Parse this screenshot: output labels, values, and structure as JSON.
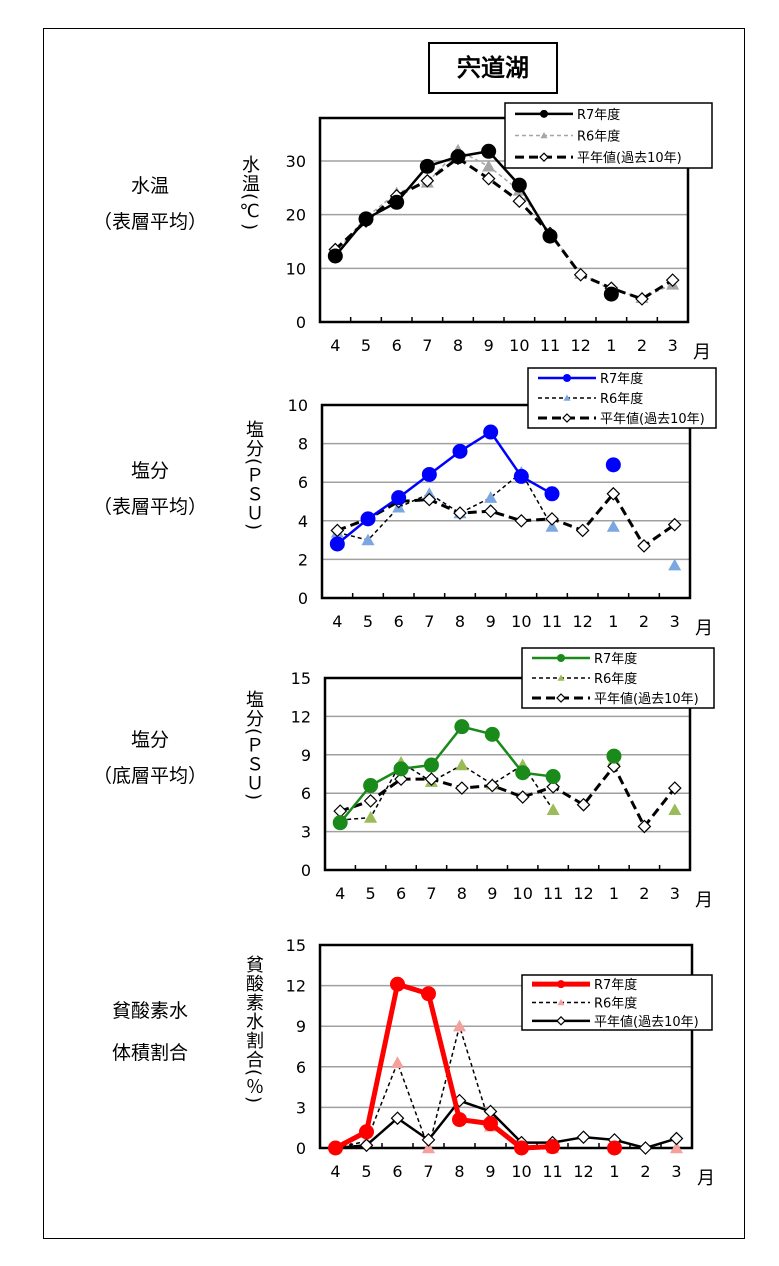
{
  "title": "宍道湖",
  "months": [
    "4",
    "5",
    "6",
    "7",
    "8",
    "9",
    "10",
    "11",
    "12",
    "1",
    "2",
    "3"
  ],
  "month_unit": "月",
  "chart_data": [
    {
      "type": "line",
      "side_label": [
        "水温",
        "（表層平均）"
      ],
      "ylabel": "水温(℃)",
      "ylim": [
        0,
        38
      ],
      "yticks": [
        0,
        10,
        20,
        30
      ],
      "grid": true,
      "legend": "top-right",
      "series": [
        {
          "name": "R7年度",
          "color": "#000000",
          "marker": "circle",
          "line": "solid",
          "values": [
            12.3,
            19.2,
            22.3,
            29.0,
            30.8,
            31.8,
            25.5,
            16.0,
            null,
            5.2,
            null,
            null
          ]
        },
        {
          "name": "R6年度",
          "color": "#a6a6a6",
          "marker": "triangle",
          "line": "dashed",
          "values": [
            13.0,
            19.5,
            24.0,
            26.0,
            32.0,
            29.0,
            24.5,
            16.5,
            9.0,
            6.0,
            4.5,
            7.0
          ]
        },
        {
          "name": "平年値(過去10年)",
          "color": "#000000",
          "marker": "diamond",
          "line": "dashed-bold",
          "values": [
            13.5,
            18.8,
            23.5,
            26.3,
            30.5,
            26.7,
            22.5,
            16.5,
            8.8,
            6.3,
            4.3,
            7.8
          ]
        }
      ]
    },
    {
      "type": "line",
      "side_label": [
        "塩分",
        "（表層平均）"
      ],
      "ylabel": "塩分(ＰＳＵ)",
      "ylim": [
        0,
        10
      ],
      "yticks": [
        0,
        2,
        4,
        6,
        8,
        10
      ],
      "grid": true,
      "legend": "top-right",
      "series": [
        {
          "name": "R7年度",
          "color": "#0000ff",
          "marker": "circle",
          "line": "solid",
          "values": [
            2.8,
            4.1,
            5.2,
            6.4,
            7.6,
            8.6,
            6.3,
            5.4,
            null,
            6.9,
            null,
            null
          ]
        },
        {
          "name": "R6年度",
          "color": "#7ba7e0",
          "marker": "triangle",
          "line": "dashed",
          "values": [
            3.4,
            3.0,
            4.7,
            5.4,
            4.4,
            5.2,
            6.5,
            3.7,
            null,
            3.7,
            null,
            1.7
          ]
        },
        {
          "name": "平年値(過去10年)",
          "color": "#000000",
          "marker": "diamond",
          "line": "dashed-bold",
          "values": [
            3.5,
            4.1,
            5.0,
            5.1,
            4.4,
            4.5,
            4.0,
            4.1,
            3.5,
            5.4,
            2.7,
            3.8
          ]
        }
      ]
    },
    {
      "type": "line",
      "side_label": [
        "塩分",
        "（底層平均）"
      ],
      "ylabel": "塩分(ＰＳＵ)",
      "ylim": [
        0,
        15
      ],
      "yticks": [
        0,
        3,
        6,
        9,
        12,
        15
      ],
      "grid": true,
      "legend": "top-right",
      "series": [
        {
          "name": "R7年度",
          "color": "#1a8a1a",
          "marker": "circle",
          "line": "solid",
          "values": [
            3.7,
            6.6,
            7.9,
            8.2,
            11.2,
            10.6,
            7.6,
            7.3,
            null,
            8.9,
            null,
            null
          ]
        },
        {
          "name": "R6年度",
          "color": "#9bbb59",
          "marker": "triangle",
          "line": "dashed",
          "values": [
            3.9,
            4.1,
            8.4,
            6.9,
            8.2,
            6.7,
            8.2,
            4.7,
            null,
            8.6,
            null,
            4.7
          ]
        },
        {
          "name": "平年値(過去10年)",
          "color": "#000000",
          "marker": "diamond",
          "line": "dashed-bold",
          "values": [
            4.6,
            5.4,
            7.1,
            7.1,
            6.4,
            6.6,
            5.7,
            6.5,
            5.1,
            8.1,
            3.4,
            6.4
          ]
        }
      ]
    },
    {
      "type": "line",
      "side_label": [
        "貧酸素水",
        "体積割合"
      ],
      "ylabel": "貧酸素水割合(％)",
      "ylim": [
        0,
        15
      ],
      "yticks": [
        0,
        3,
        6,
        9,
        12,
        15
      ],
      "grid": true,
      "legend": "right",
      "series": [
        {
          "name": "R7年度",
          "color": "#ff0000",
          "marker": "circle",
          "line": "solid-bold",
          "values": [
            0,
            1.2,
            12.1,
            11.4,
            2.1,
            1.8,
            0,
            0.1,
            null,
            0,
            null,
            null
          ]
        },
        {
          "name": "R6年度",
          "color": "#f4a09c",
          "marker": "triangle",
          "line": "dashed",
          "values": [
            0,
            0.5,
            6.3,
            0,
            9.0,
            1.6,
            0.1,
            0,
            null,
            0,
            null,
            0
          ]
        },
        {
          "name": "平年値(過去10年)",
          "color": "#000000",
          "marker": "diamond",
          "line": "solid",
          "values": [
            0,
            0.2,
            2.2,
            0.6,
            3.5,
            2.7,
            0.4,
            0.4,
            0.8,
            0.6,
            0,
            0.7
          ]
        }
      ]
    }
  ]
}
